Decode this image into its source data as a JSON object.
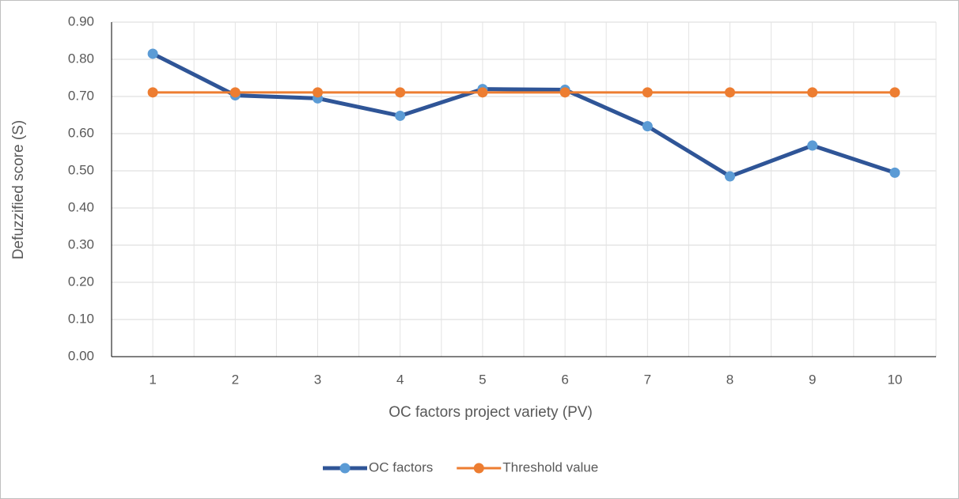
{
  "chart_data": {
    "type": "line",
    "x_label": "OC factors project variety (PV)",
    "y_label": "Defuzzified score (S)",
    "categories": [
      "1",
      "2",
      "3",
      "4",
      "5",
      "6",
      "7",
      "8",
      "9",
      "10"
    ],
    "series": [
      {
        "name": "OC factors",
        "color": "#2f5597",
        "marker_color": "#5b9bd5",
        "values": [
          0.815,
          0.703,
          0.695,
          0.648,
          0.72,
          0.718,
          0.62,
          0.485,
          0.568,
          0.495
        ]
      },
      {
        "name": "Threshold value",
        "color": "#ed7d31",
        "marker_color": "#ed7d31",
        "values": [
          0.711,
          0.711,
          0.711,
          0.711,
          0.711,
          0.711,
          0.711,
          0.711,
          0.711,
          0.711
        ]
      }
    ],
    "ylim": [
      0,
      0.9
    ],
    "yticks": [
      {
        "value": 0,
        "label": "0.00"
      },
      {
        "value": 0.1,
        "label": "0.10"
      },
      {
        "value": 0.2,
        "label": "0.20"
      },
      {
        "value": 0.3,
        "label": "0.30"
      },
      {
        "value": 0.4,
        "label": "0.40"
      },
      {
        "value": 0.5,
        "label": "0.50"
      },
      {
        "value": 0.6,
        "label": "0.60"
      },
      {
        "value": 0.7,
        "label": "0.70"
      },
      {
        "value": 0.8,
        "label": "0.80"
      },
      {
        "value": 0.9,
        "label": "0.90"
      }
    ],
    "grid": true,
    "legend": "bottom"
  }
}
